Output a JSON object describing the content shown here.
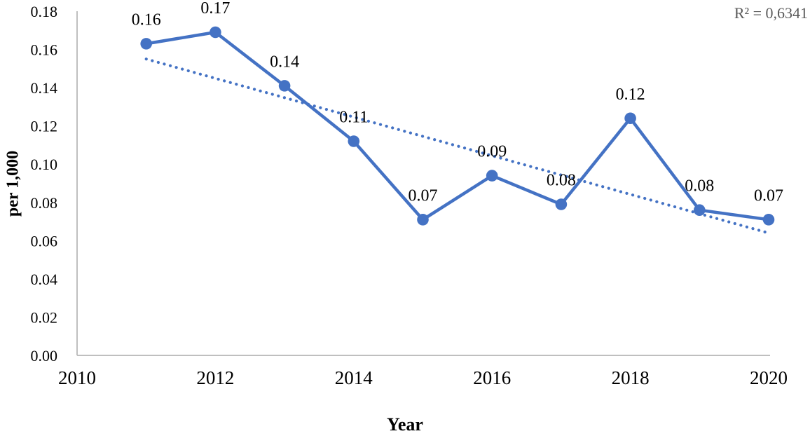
{
  "chart_data": {
    "type": "line",
    "title": "",
    "xlabel": "Year",
    "ylabel": "per 1,000",
    "x": [
      2011,
      2012,
      2013,
      2014,
      2015,
      2016,
      2017,
      2018,
      2019,
      2020
    ],
    "series": [
      {
        "name": "rate-per-1000",
        "values": [
          0.163,
          0.169,
          0.141,
          0.112,
          0.071,
          0.094,
          0.079,
          0.124,
          0.076,
          0.071
        ],
        "point_labels": [
          "0.16",
          "0.17",
          "0.14",
          "0.11",
          "0.07",
          "0.09",
          "0.08",
          "0.12",
          "0.08",
          "0.07"
        ],
        "color": "#4472C4",
        "marker": "circle"
      }
    ],
    "trendline": {
      "style": "dotted",
      "color": "#4472C4",
      "x_start": 2011,
      "y_start": 0.155,
      "x_end": 2020,
      "y_end": 0.064,
      "annotation": "R² = 0,6341",
      "annotation_color": "#595959"
    },
    "x_axis": {
      "min": 2010,
      "max": 2020,
      "tick_values": [
        2010,
        2012,
        2014,
        2016,
        2018,
        2020
      ],
      "tick_labels": [
        "2010",
        "2012",
        "2014",
        "2016",
        "2018",
        "2020"
      ]
    },
    "y_axis": {
      "min": 0,
      "max": 0.18,
      "tick_labels": [
        "0.18",
        "0.16",
        "0.14",
        "0.12",
        "0.10",
        "0.08",
        "0.06",
        "0.04",
        "0.02",
        "0.00"
      ]
    },
    "axis_color": "#BFBFBF",
    "grid": false,
    "legend": "none",
    "background": "#FFFFFF"
  }
}
